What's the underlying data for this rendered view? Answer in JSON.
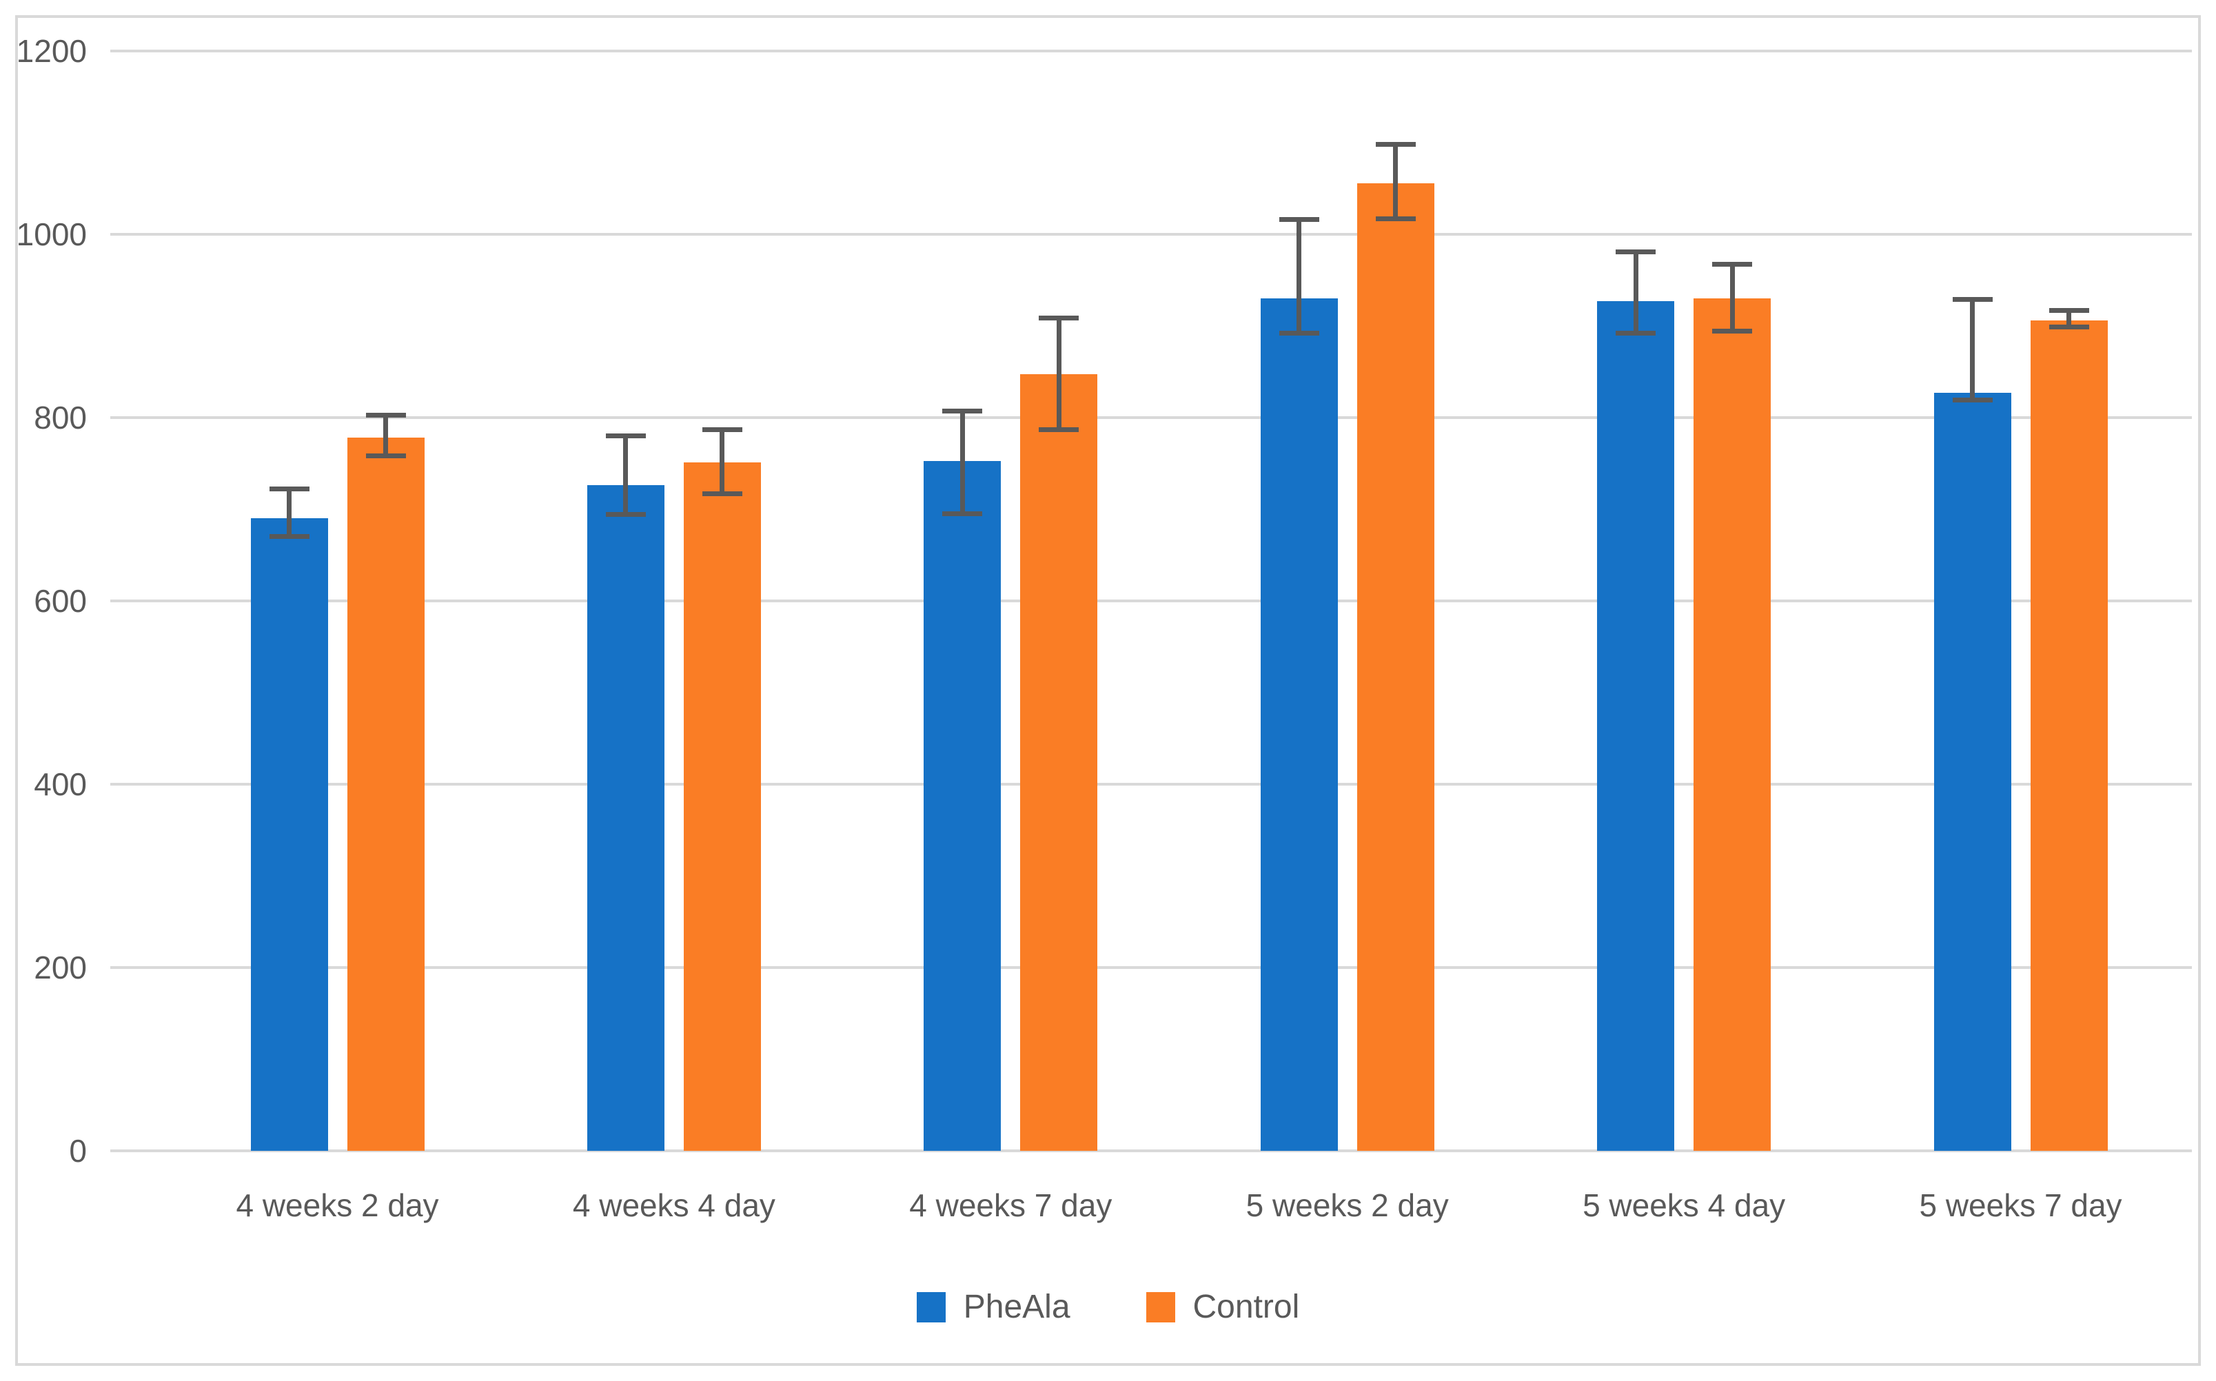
{
  "chart_data": {
    "type": "bar",
    "title": "",
    "xlabel": "",
    "ylabel": "",
    "categories": [
      "4 weeks 2 day",
      "4 weeks 4 day",
      "4 weeks 7 day",
      "5 weeks 2 day",
      "5 weeks 4 day",
      "5 weeks 7 day"
    ],
    "series": [
      {
        "name": "PheAla",
        "color": "#1672C6",
        "values": [
          690,
          726,
          753,
          930,
          927,
          827
        ],
        "error_high": [
          722,
          780,
          807,
          1016,
          981,
          929
        ],
        "error_low": [
          670,
          694,
          695,
          892,
          892,
          819
        ]
      },
      {
        "name": "Control",
        "color": "#FA7D25",
        "values": [
          778,
          751,
          847,
          1056,
          930,
          906
        ],
        "error_high": [
          803,
          787,
          909,
          1098,
          967,
          917
        ],
        "error_low": [
          758,
          717,
          787,
          1017,
          894,
          899
        ]
      }
    ],
    "ylim": [
      0,
      1200
    ],
    "ytick_step": 200,
    "yticks": [
      "0",
      "200",
      "400",
      "600",
      "800",
      "1000",
      "1200"
    ],
    "grid": true,
    "legend_position": "bottom",
    "gridline_color": "#D9D9D9",
    "axis_text_color": "#595959",
    "error_bar_color": "#595959",
    "frame_border_color": "#D9D9D9",
    "background_color": "#FFFFFF"
  }
}
